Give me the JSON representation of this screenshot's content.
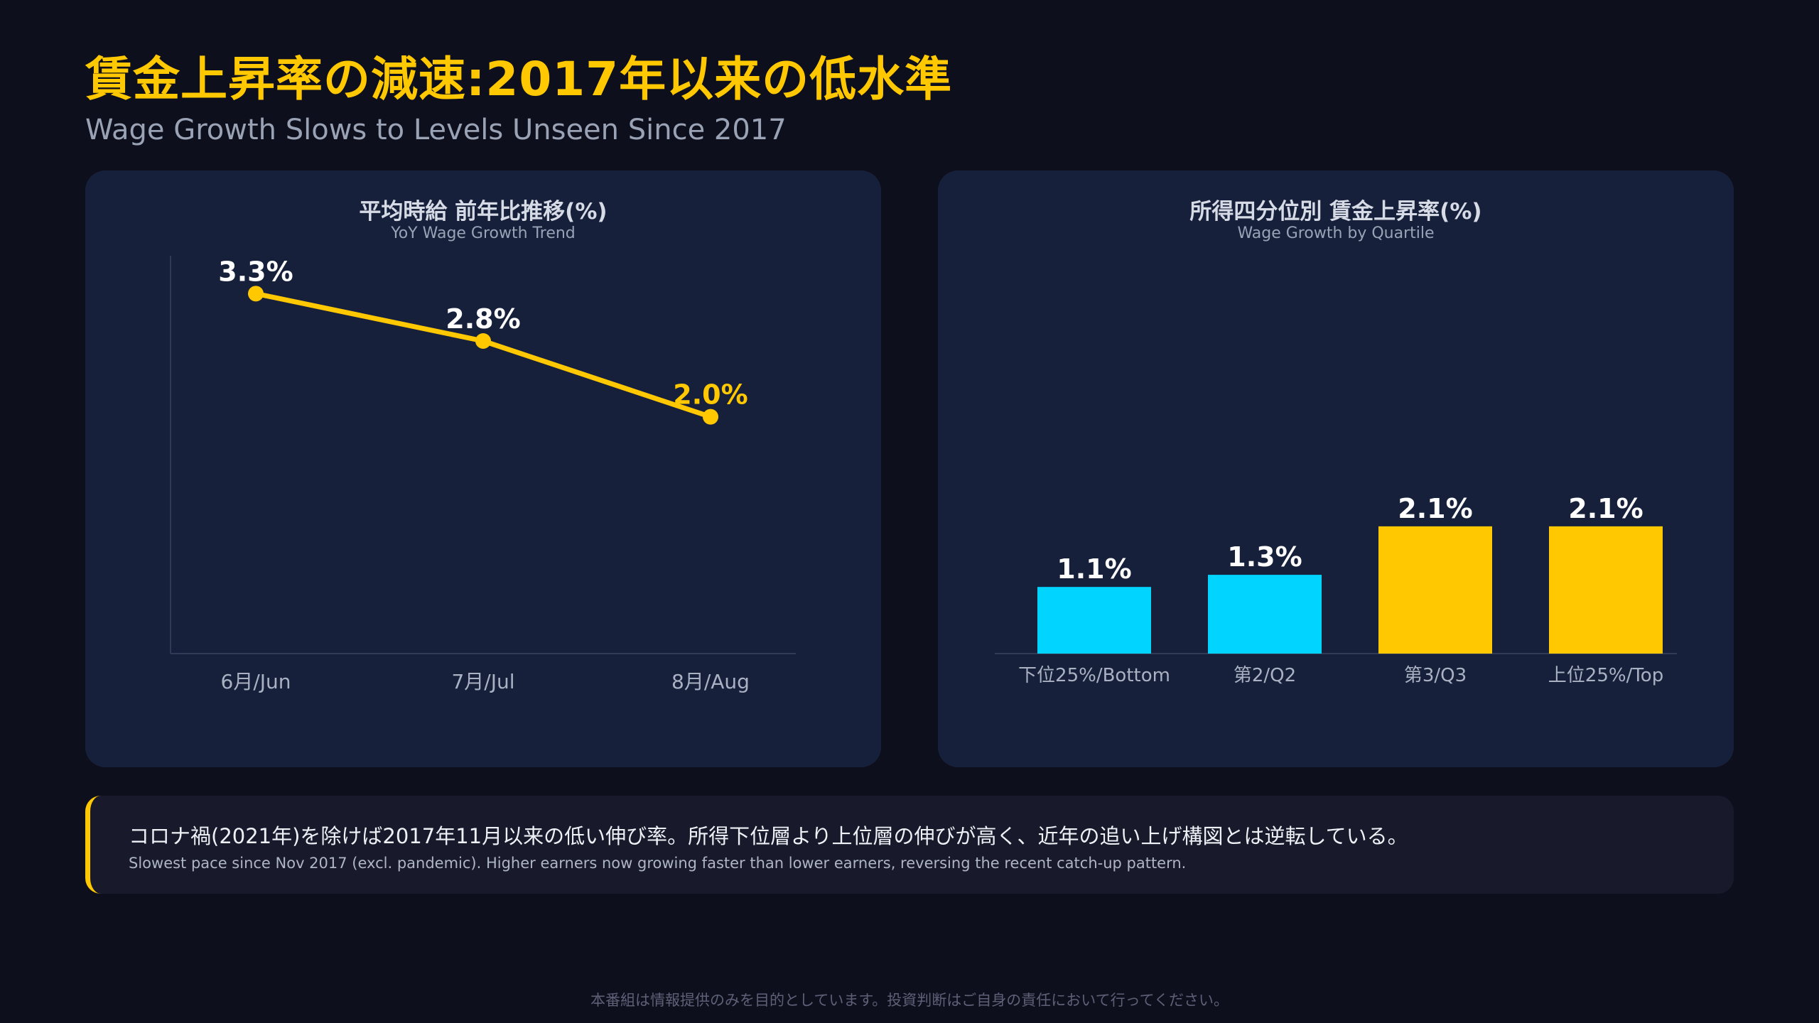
{
  "header": {
    "title": "賃金上昇率の減速:2017年以来の低水準",
    "subtitle": "Wage Growth Slows to Levels Unseen Since 2017"
  },
  "colors": {
    "accent": "#ffc800",
    "cyan": "#00d4ff",
    "panel": "#16203b",
    "background": "#0e0f1c"
  },
  "chart_data": [
    {
      "type": "line",
      "title": "平均時給 前年比推移(%)",
      "subtitle": "YoY Wage Growth Trend",
      "categories": [
        "6月/Jun",
        "7月/Jul",
        "8月/Aug"
      ],
      "series": [
        {
          "values": [
            3.3,
            2.8,
            2.0
          ]
        }
      ],
      "labels": [
        "3.3%",
        "2.8%",
        "2.0%"
      ],
      "label_colors": [
        "#ffffff",
        "#ffffff",
        "#ffc800"
      ],
      "line_color": "#ffc800",
      "ylim": [
        -0.5,
        3.7
      ],
      "grid": false
    },
    {
      "type": "bar",
      "title": "所得四分位別 賃金上昇率(%)",
      "subtitle": "Wage Growth by Quartile",
      "categories": [
        "下位25%/Bottom",
        "第2/Q2",
        "第3/Q3",
        "上位25%/Top"
      ],
      "values": [
        1.1,
        1.3,
        2.1,
        2.1
      ],
      "labels": [
        "1.1%",
        "1.3%",
        "2.1%",
        "2.1%"
      ],
      "bar_colors": [
        "#00d4ff",
        "#00d4ff",
        "#ffc800",
        "#ffc800"
      ],
      "ylim": [
        0,
        6.8
      ],
      "grid": false
    }
  ],
  "note": {
    "jp": "コロナ禍(2021年)を除けば2017年11月以来の低い伸び率。所得下位層より上位層の伸びが高く、近年の追い上げ構図とは逆転している。",
    "en": "Slowest pace since Nov 2017 (excl. pandemic). Higher earners now growing faster than lower earners, reversing the recent catch-up pattern."
  },
  "footer": {
    "disclaimer": "本番組は情報提供のみを目的としています。投資判断はご自身の責任において行ってください。"
  }
}
